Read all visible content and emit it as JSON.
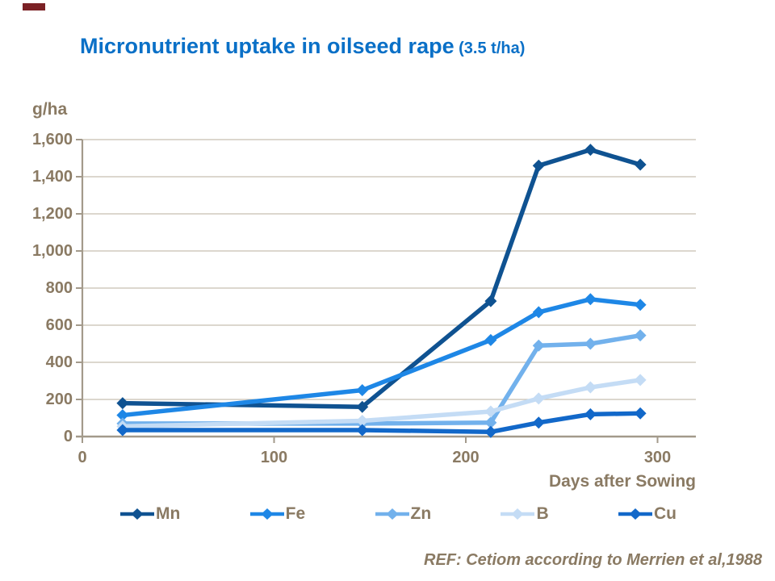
{
  "slide": {
    "title": "Micronutrient uptake in oilseed rape",
    "title_suffix": " (3.5 t/ha)",
    "reference": "REF: Cetiom according to Merrien et al,1988",
    "accent_color": "#7B2125"
  },
  "colors": {
    "title_blue": "#0A70C7",
    "axis_text": "#8A7A63",
    "gridline": "#C7BFB1",
    "axis_line": "#A39A8B"
  },
  "chart_data": {
    "type": "line",
    "title": "Micronutrient uptake in oilseed rape (3.5 t/ha)",
    "xlabel": "Days after Sowing",
    "ylabel": "g/ha",
    "x": [
      21,
      146,
      213,
      238,
      265,
      291
    ],
    "series": [
      {
        "name": "Mn",
        "color": "#0F5291",
        "values": [
          180,
          160,
          730,
          1460,
          1545,
          1465
        ]
      },
      {
        "name": "Fe",
        "color": "#1E87E6",
        "values": [
          115,
          250,
          520,
          670,
          740,
          710
        ]
      },
      {
        "name": "Zn",
        "color": "#72B1EC",
        "values": [
          70,
          70,
          75,
          490,
          500,
          545
        ]
      },
      {
        "name": "B",
        "color": "#C4DCF5",
        "values": [
          55,
          85,
          135,
          205,
          265,
          305
        ]
      },
      {
        "name": "Cu",
        "color": "#1268C9",
        "values": [
          35,
          35,
          25,
          75,
          120,
          125
        ]
      }
    ],
    "x_ticks": [
      "0",
      "100",
      "200",
      "300"
    ],
    "x_tick_values": [
      0,
      100,
      200,
      300
    ],
    "xlim": [
      0,
      320
    ],
    "y_ticks": [
      "0",
      "200",
      "400",
      "600",
      "800",
      "1,000",
      "1,200",
      "1,400",
      "1,600"
    ],
    "y_tick_values": [
      0,
      200,
      400,
      600,
      800,
      1000,
      1200,
      1400,
      1600
    ],
    "ylim": [
      0,
      1600
    ],
    "grid": "horizontal",
    "legend_position": "bottom",
    "marker": "diamond"
  },
  "legend": {
    "items": [
      "Mn",
      "Fe",
      "Zn",
      "B",
      "Cu"
    ]
  }
}
